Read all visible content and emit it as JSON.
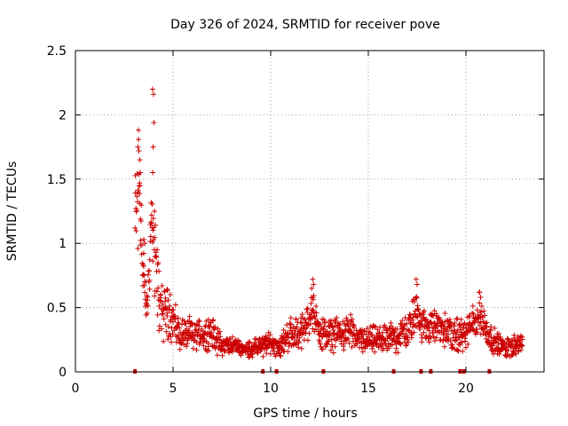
{
  "chart_data": {
    "type": "scatter",
    "title": "Day 326 of 2024, SRMTID for receiver pove",
    "xlabel": "GPS time / hours",
    "ylabel": "SRMTID / TECUs",
    "xlim": [
      0,
      24
    ],
    "ylim": [
      0,
      2.5
    ],
    "xticks": [
      0,
      5,
      10,
      15,
      20
    ],
    "yticks": [
      0,
      0.5,
      1,
      1.5,
      2,
      2.5
    ],
    "xtick_labels": [
      "0",
      "5",
      "10",
      "15",
      "20"
    ],
    "ytick_labels": [
      "0",
      "0.5",
      "1",
      "1.5",
      "2",
      "2.5"
    ],
    "grid": true,
    "series_color": "#cc0000",
    "marker": "plus",
    "zero_markers_x": [
      3.05,
      9.6,
      10.3,
      12.7,
      16.3,
      17.7,
      18.2,
      19.7,
      19.9,
      21.2
    ],
    "envelope": [
      [
        3.05,
        1.15,
        0.55
      ],
      [
        3.15,
        1.3,
        0.7
      ],
      [
        3.25,
        1.7,
        0.9
      ],
      [
        3.35,
        1.2,
        0.5
      ],
      [
        3.45,
        0.85,
        0.45
      ],
      [
        3.55,
        0.6,
        0.3
      ],
      [
        3.65,
        0.45,
        0.2
      ],
      [
        3.75,
        0.7,
        0.25
      ],
      [
        3.85,
        1.05,
        0.35
      ],
      [
        3.95,
        1.25,
        0.4
      ],
      [
        4.05,
        0.9,
        0.45
      ],
      [
        4.15,
        0.8,
        0.4
      ],
      [
        4.25,
        0.6,
        0.35
      ],
      [
        4.4,
        0.5,
        0.3
      ],
      [
        4.6,
        0.45,
        0.3
      ],
      [
        4.8,
        0.5,
        0.3
      ],
      [
        5.0,
        0.4,
        0.2
      ],
      [
        5.3,
        0.3,
        0.15
      ],
      [
        5.6,
        0.3,
        0.15
      ],
      [
        6.0,
        0.28,
        0.15
      ],
      [
        6.5,
        0.3,
        0.15
      ],
      [
        7.0,
        0.3,
        0.15
      ],
      [
        7.5,
        0.2,
        0.1
      ],
      [
        8.0,
        0.22,
        0.08
      ],
      [
        8.5,
        0.18,
        0.06
      ],
      [
        9.0,
        0.18,
        0.08
      ],
      [
        9.5,
        0.2,
        0.1
      ],
      [
        10.0,
        0.22,
        0.1
      ],
      [
        10.5,
        0.2,
        0.1
      ],
      [
        11.0,
        0.3,
        0.15
      ],
      [
        11.5,
        0.3,
        0.15
      ],
      [
        11.8,
        0.35,
        0.15
      ],
      [
        12.1,
        0.5,
        0.2
      ],
      [
        12.3,
        0.4,
        0.15
      ],
      [
        12.6,
        0.3,
        0.15
      ],
      [
        13.0,
        0.28,
        0.15
      ],
      [
        13.5,
        0.3,
        0.15
      ],
      [
        14.0,
        0.32,
        0.15
      ],
      [
        14.5,
        0.25,
        0.12
      ],
      [
        15.0,
        0.25,
        0.12
      ],
      [
        15.5,
        0.25,
        0.12
      ],
      [
        16.0,
        0.26,
        0.12
      ],
      [
        16.5,
        0.28,
        0.15
      ],
      [
        17.0,
        0.32,
        0.15
      ],
      [
        17.3,
        0.4,
        0.2
      ],
      [
        17.5,
        0.55,
        0.2
      ],
      [
        17.7,
        0.35,
        0.15
      ],
      [
        18.0,
        0.35,
        0.15
      ],
      [
        18.5,
        0.35,
        0.15
      ],
      [
        19.0,
        0.32,
        0.15
      ],
      [
        19.5,
        0.28,
        0.15
      ],
      [
        20.0,
        0.3,
        0.15
      ],
      [
        20.4,
        0.38,
        0.18
      ],
      [
        20.7,
        0.45,
        0.2
      ],
      [
        21.0,
        0.35,
        0.15
      ],
      [
        21.3,
        0.25,
        0.12
      ],
      [
        21.7,
        0.22,
        0.1
      ],
      [
        22.0,
        0.18,
        0.08
      ],
      [
        22.3,
        0.2,
        0.1
      ],
      [
        22.6,
        0.22,
        0.1
      ],
      [
        22.9,
        0.2,
        0.1
      ]
    ],
    "peaks": [
      [
        3.2,
        1.75
      ],
      [
        3.25,
        1.72
      ],
      [
        3.3,
        1.65
      ],
      [
        3.32,
        1.55
      ],
      [
        3.3,
        1.45
      ],
      [
        3.22,
        1.4
      ],
      [
        3.5,
        1.03
      ],
      [
        3.55,
        1.0
      ],
      [
        3.95,
        2.2
      ],
      [
        4.0,
        2.16
      ],
      [
        4.02,
        1.94
      ],
      [
        3.98,
        1.75
      ],
      [
        3.96,
        1.55
      ],
      [
        4.05,
        1.25
      ],
      [
        3.9,
        1.22
      ],
      [
        12.15,
        0.72
      ],
      [
        12.2,
        0.68
      ],
      [
        12.1,
        0.65
      ],
      [
        17.45,
        0.72
      ],
      [
        17.5,
        0.68
      ],
      [
        20.7,
        0.62
      ],
      [
        20.75,
        0.58
      ]
    ]
  }
}
